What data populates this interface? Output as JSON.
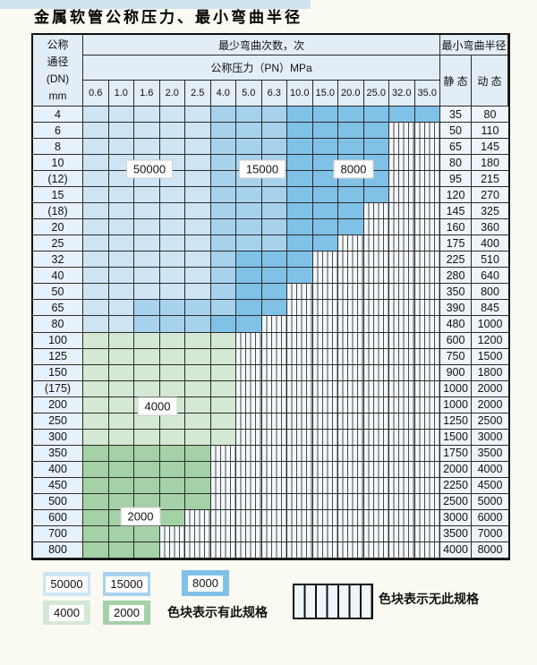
{
  "page": {
    "title": "金属软管公称压力、最小弯曲半径"
  },
  "table": {
    "dn_header_lines": [
      "公称",
      "通径",
      "(DN)",
      "mm"
    ],
    "bend_times_header": "最少弯曲次数，次",
    "pn_header": "公称压力（PN）MPa",
    "radius_header": "最小弯曲半径",
    "static_header": "静 态",
    "dynamic_header": "动 态",
    "pn_columns": [
      "0.6",
      "1.0",
      "1.6",
      "2.0",
      "2.5",
      "4.0",
      "5.0",
      "6.3",
      "10.0",
      "15.0",
      "20.0",
      "25.0",
      "32.0",
      "35.0"
    ],
    "colors": {
      "b50": "#cde5f5",
      "b15": "#a7d2ee",
      "b8": "#80c1e8",
      "g4": "#d5e8d3",
      "g2": "#a4d2a6"
    },
    "rows": [
      {
        "dn": "4",
        "bands": [
          [
            "b50",
            5
          ],
          [
            "b15",
            3
          ],
          [
            "b8",
            6
          ]
        ],
        "static": "35",
        "dynamic": "80"
      },
      {
        "dn": "6",
        "bands": [
          [
            "b50",
            5
          ],
          [
            "b15",
            3
          ],
          [
            "b8",
            4
          ]
        ],
        "static": "50",
        "dynamic": "110"
      },
      {
        "dn": "8",
        "bands": [
          [
            "b50",
            5
          ],
          [
            "b15",
            3
          ],
          [
            "b8",
            4
          ]
        ],
        "static": "65",
        "dynamic": "145"
      },
      {
        "dn": "10",
        "bands": [
          [
            "b50",
            5
          ],
          [
            "b15",
            3
          ],
          [
            "b8",
            4
          ]
        ],
        "static": "80",
        "dynamic": "180"
      },
      {
        "dn": "(12)",
        "bands": [
          [
            "b50",
            5
          ],
          [
            "b15",
            3
          ],
          [
            "b8",
            4
          ]
        ],
        "static": "95",
        "dynamic": "215"
      },
      {
        "dn": "15",
        "bands": [
          [
            "b50",
            5
          ],
          [
            "b15",
            3
          ],
          [
            "b8",
            4
          ]
        ],
        "static": "120",
        "dynamic": "270"
      },
      {
        "dn": "(18)",
        "bands": [
          [
            "b50",
            5
          ],
          [
            "b15",
            3
          ],
          [
            "b8",
            3
          ]
        ],
        "static": "145",
        "dynamic": "325"
      },
      {
        "dn": "20",
        "bands": [
          [
            "b50",
            5
          ],
          [
            "b15",
            3
          ],
          [
            "b8",
            3
          ]
        ],
        "static": "160",
        "dynamic": "360"
      },
      {
        "dn": "25",
        "bands": [
          [
            "b50",
            5
          ],
          [
            "b15",
            3
          ],
          [
            "b8",
            2
          ]
        ],
        "static": "175",
        "dynamic": "400"
      },
      {
        "dn": "32",
        "bands": [
          [
            "b50",
            5
          ],
          [
            "b15",
            1
          ],
          [
            "b8",
            3
          ]
        ],
        "static": "225",
        "dynamic": "510"
      },
      {
        "dn": "40",
        "bands": [
          [
            "b50",
            5
          ],
          [
            "b15",
            1
          ],
          [
            "b8",
            3
          ]
        ],
        "static": "280",
        "dynamic": "640"
      },
      {
        "dn": "50",
        "bands": [
          [
            "b50",
            5
          ],
          [
            "b15",
            1
          ],
          [
            "b8",
            2
          ]
        ],
        "static": "350",
        "dynamic": "800"
      },
      {
        "dn": "65",
        "bands": [
          [
            "b50",
            2
          ],
          [
            "b15",
            4
          ],
          [
            "b8",
            2
          ]
        ],
        "static": "390",
        "dynamic": "845"
      },
      {
        "dn": "80",
        "bands": [
          [
            "b50",
            2
          ],
          [
            "b15",
            3
          ],
          [
            "b8",
            2
          ]
        ],
        "static": "480",
        "dynamic": "1000"
      },
      {
        "dn": "100",
        "bands": [
          [
            "g4",
            6
          ]
        ],
        "static": "600",
        "dynamic": "1200"
      },
      {
        "dn": "125",
        "bands": [
          [
            "g4",
            6
          ]
        ],
        "static": "750",
        "dynamic": "1500"
      },
      {
        "dn": "150",
        "bands": [
          [
            "g4",
            6
          ]
        ],
        "static": "900",
        "dynamic": "1800"
      },
      {
        "dn": "(175)",
        "bands": [
          [
            "g4",
            6
          ]
        ],
        "static": "1000",
        "dynamic": "2000"
      },
      {
        "dn": "200",
        "bands": [
          [
            "g4",
            6
          ]
        ],
        "static": "1000",
        "dynamic": "2000"
      },
      {
        "dn": "250",
        "bands": [
          [
            "g4",
            6
          ]
        ],
        "static": "1250",
        "dynamic": "2500"
      },
      {
        "dn": "300",
        "bands": [
          [
            "g4",
            6
          ]
        ],
        "static": "1500",
        "dynamic": "3000"
      },
      {
        "dn": "350",
        "bands": [
          [
            "g2",
            5
          ]
        ],
        "static": "1750",
        "dynamic": "3500"
      },
      {
        "dn": "400",
        "bands": [
          [
            "g2",
            5
          ]
        ],
        "static": "2000",
        "dynamic": "4000"
      },
      {
        "dn": "450",
        "bands": [
          [
            "g2",
            5
          ]
        ],
        "static": "2250",
        "dynamic": "4500"
      },
      {
        "dn": "500",
        "bands": [
          [
            "g2",
            5
          ]
        ],
        "static": "2500",
        "dynamic": "5000"
      },
      {
        "dn": "600",
        "bands": [
          [
            "g2",
            4
          ]
        ],
        "static": "3000",
        "dynamic": "6000"
      },
      {
        "dn": "700",
        "bands": [
          [
            "g2",
            3
          ]
        ],
        "static": "3500",
        "dynamic": "7000"
      },
      {
        "dn": "800",
        "bands": [
          [
            "g2",
            3
          ]
        ],
        "static": "4000",
        "dynamic": "8000"
      }
    ],
    "region_labels": [
      {
        "text": "50000"
      },
      {
        "text": "15000"
      },
      {
        "text": "8000"
      },
      {
        "text": "4000"
      },
      {
        "text": "2000"
      }
    ]
  },
  "legend": {
    "chips": [
      {
        "label": "50000",
        "color": "b50"
      },
      {
        "label": "15000",
        "color": "b15"
      },
      {
        "label": "8000",
        "color": "b8"
      },
      {
        "label": "4000",
        "color": "g4"
      },
      {
        "label": "2000",
        "color": "g2"
      }
    ],
    "has_spec_text": "色块表示有此规格",
    "no_spec_text": "色块表示无此规格"
  }
}
